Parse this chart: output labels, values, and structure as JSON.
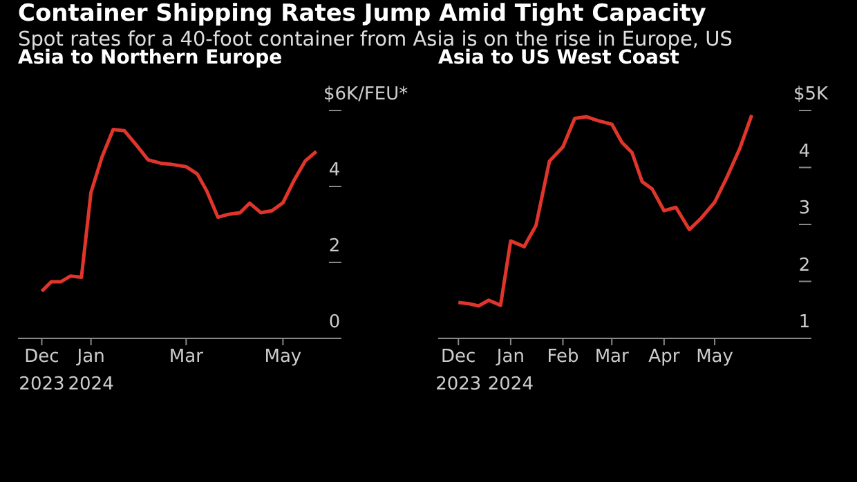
{
  "chart_data": [
    {
      "type": "other",
      "title": "Container Shipping Rates Jump Amid Tight Capacity",
      "subtitle": "Spot rates for a 40-foot container from Asia is on the rise in Europe, US"
    },
    {
      "type": "line",
      "title": "Asia to Northern Europe",
      "x": [
        "2023-12-01",
        "2023-12-07",
        "2023-12-13",
        "2023-12-19",
        "2023-12-26",
        "2024-01-01",
        "2024-01-08",
        "2024-01-15",
        "2024-01-22",
        "2024-01-30",
        "2024-02-06",
        "2024-02-14",
        "2024-02-21",
        "2024-03-01",
        "2024-03-08",
        "2024-03-14",
        "2024-03-21",
        "2024-03-28",
        "2024-04-04",
        "2024-04-10",
        "2024-04-17",
        "2024-04-24",
        "2024-05-01",
        "2024-05-08",
        "2024-05-15",
        "2024-05-22"
      ],
      "series": [
        {
          "color": "#e0352b",
          "values": [
            1.24,
            1.49,
            1.49,
            1.64,
            1.61,
            3.84,
            4.78,
            5.5,
            5.47,
            5.07,
            4.7,
            4.61,
            4.58,
            4.52,
            4.33,
            3.88,
            3.19,
            3.27,
            3.31,
            3.56,
            3.31,
            3.36,
            3.57,
            4.16,
            4.67,
            4.92
          ]
        }
      ],
      "xlim": [
        "2023-11-16",
        "2024-05-30"
      ],
      "xticks": [
        {
          "value": "2023-12-01",
          "label": "Dec\n2023"
        },
        {
          "value": "2024-01-01",
          "label": "Jan\n2024"
        },
        {
          "value": "2024-03-01",
          "label": "Mar"
        },
        {
          "value": "2024-05-01",
          "label": "May"
        }
      ],
      "ylim": [
        0,
        6
      ],
      "yticks": [
        0,
        2,
        4,
        {
          "value": 6,
          "label": "$6K/FEU*"
        }
      ]
    },
    {
      "type": "line",
      "title": "Asia to US West Coast",
      "x": [
        "2023-12-01",
        "2023-12-07",
        "2023-12-13",
        "2023-12-19",
        "2023-12-26",
        "2024-01-01",
        "2024-01-09",
        "2024-01-16",
        "2024-01-24",
        "2024-02-01",
        "2024-02-08",
        "2024-02-15",
        "2024-02-22",
        "2024-03-01",
        "2024-03-07",
        "2024-03-13",
        "2024-03-19",
        "2024-03-25",
        "2024-04-01",
        "2024-04-08",
        "2024-04-16",
        "2024-04-23",
        "2024-05-01",
        "2024-05-08",
        "2024-05-16",
        "2024-05-23"
      ],
      "series": [
        {
          "color": "#e0352b",
          "values": [
            1.63,
            1.61,
            1.57,
            1.67,
            1.58,
            2.71,
            2.61,
            2.98,
            4.11,
            4.36,
            4.86,
            4.89,
            4.82,
            4.76,
            4.44,
            4.26,
            3.75,
            3.62,
            3.24,
            3.3,
            2.91,
            3.11,
            3.39,
            3.81,
            4.34,
            4.92
          ]
        }
      ],
      "xlim": [
        "2023-11-19",
        "2024-06-20"
      ],
      "xticks": [
        {
          "value": "2023-12-01",
          "label": "Dec\n2023"
        },
        {
          "value": "2024-01-01",
          "label": "Jan\n2024"
        },
        {
          "value": "2024-02-01",
          "label": "Feb"
        },
        {
          "value": "2024-03-01",
          "label": "Mar"
        },
        {
          "value": "2024-04-01",
          "label": "Apr"
        },
        {
          "value": "2024-05-01",
          "label": "May"
        }
      ],
      "ylim": [
        1,
        5
      ],
      "yticks": [
        1,
        2,
        3,
        4,
        {
          "value": 5,
          "label": "$5K"
        }
      ]
    }
  ]
}
